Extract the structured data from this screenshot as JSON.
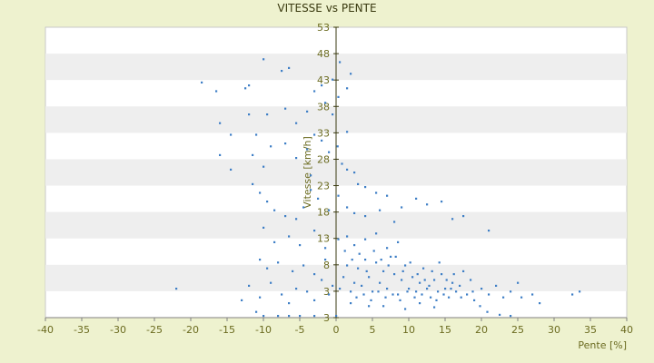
{
  "chart_data": {
    "type": "scatter",
    "title": "VITESSE vs PENTE",
    "xlabel": "Pente [%]",
    "ylabel": "Vitesse [km/h]",
    "xlim": [
      -40,
      40
    ],
    "ylim": [
      3,
      53
    ],
    "x_ticks": [
      "-40",
      "-35",
      "-30",
      "-25",
      "-20",
      "-15",
      "-10",
      "-5",
      "0",
      "5",
      "10",
      "15",
      "20",
      "25",
      "30",
      "35",
      "40"
    ],
    "y_ticks": [
      "3",
      "3",
      "8",
      "13",
      "18",
      "23",
      "28",
      "33",
      "38",
      "43",
      "48",
      "53"
    ],
    "alternating_bands": true,
    "marker_color": "#3f7fc6",
    "points": [
      [
        -18.5,
        43.5
      ],
      [
        -16.5,
        42.0
      ],
      [
        -12.5,
        42.5
      ],
      [
        -12.0,
        43.0
      ],
      [
        -10.0,
        47.5
      ],
      [
        -7.5,
        45.5
      ],
      [
        -6.5,
        46.0
      ],
      [
        -3.0,
        42.0
      ],
      [
        -2.0,
        43.0
      ],
      [
        -0.5,
        44.0
      ],
      [
        0.5,
        47.0
      ],
      [
        2.0,
        45.0
      ],
      [
        1.5,
        42.5
      ],
      [
        -16.0,
        36.5
      ],
      [
        -14.5,
        34.5
      ],
      [
        -12.0,
        38.0
      ],
      [
        -11.0,
        34.5
      ],
      [
        -9.5,
        38.0
      ],
      [
        -7.0,
        39.0
      ],
      [
        -5.5,
        36.5
      ],
      [
        -4.0,
        38.5
      ],
      [
        -3.0,
        34.5
      ],
      [
        -1.5,
        40.0
      ],
      [
        -0.5,
        38.0
      ],
      [
        0.3,
        41.0
      ],
      [
        1.5,
        35.0
      ],
      [
        -16.0,
        31.0
      ],
      [
        -14.5,
        28.5
      ],
      [
        -11.5,
        31.0
      ],
      [
        -10.0,
        29.0
      ],
      [
        -9.0,
        32.5
      ],
      [
        -7.0,
        33.0
      ],
      [
        -5.5,
        30.5
      ],
      [
        -4.0,
        32.0
      ],
      [
        -3.5,
        27.5
      ],
      [
        -2.0,
        33.5
      ],
      [
        -1.0,
        31.5
      ],
      [
        0.2,
        32.5
      ],
      [
        0.8,
        29.5
      ],
      [
        1.5,
        28.5
      ],
      [
        2.5,
        28.0
      ],
      [
        3.0,
        26.0
      ],
      [
        4.0,
        25.5
      ],
      [
        5.5,
        24.5
      ],
      [
        7.0,
        24.0
      ],
      [
        9.0,
        22.0
      ],
      [
        -11.5,
        26.0
      ],
      [
        -10.5,
        24.5
      ],
      [
        -9.5,
        23.0
      ],
      [
        -8.5,
        21.5
      ],
      [
        -7.0,
        20.5
      ],
      [
        -5.5,
        20.0
      ],
      [
        -4.5,
        22.0
      ],
      [
        -3.5,
        25.0
      ],
      [
        -2.5,
        23.5
      ],
      [
        -1.0,
        21.5
      ],
      [
        0.3,
        24.0
      ],
      [
        1.5,
        22.0
      ],
      [
        2.5,
        21.0
      ],
      [
        4.0,
        20.5
      ],
      [
        6.0,
        21.5
      ],
      [
        8.0,
        19.5
      ],
      [
        11.0,
        23.5
      ],
      [
        12.5,
        22.5
      ],
      [
        14.5,
        23.0
      ],
      [
        17.5,
        20.5
      ],
      [
        21.0,
        18.0
      ],
      [
        16.0,
        20.0
      ],
      [
        -10.0,
        18.5
      ],
      [
        -8.5,
        16.0
      ],
      [
        -6.5,
        17.0
      ],
      [
        -5.0,
        15.5
      ],
      [
        -3.0,
        18.0
      ],
      [
        -1.5,
        15.0
      ],
      [
        0.3,
        16.5
      ],
      [
        1.5,
        17.0
      ],
      [
        2.5,
        15.5
      ],
      [
        4.0,
        16.5
      ],
      [
        5.5,
        17.5
      ],
      [
        7.0,
        15.0
      ],
      [
        8.5,
        16.0
      ],
      [
        -10.5,
        13.0
      ],
      [
        -9.5,
        11.5
      ],
      [
        -8.0,
        12.5
      ],
      [
        -6.0,
        11.0
      ],
      [
        -4.5,
        12.0
      ],
      [
        -3.0,
        10.5
      ],
      [
        -1.5,
        13.0
      ],
      [
        -22.0,
        8.0
      ],
      [
        -13.0,
        6.0
      ],
      [
        -12.0,
        8.5
      ],
      [
        -11.0,
        4.0
      ],
      [
        -10.5,
        6.5
      ],
      [
        -9.0,
        9.0
      ],
      [
        -7.5,
        7.0
      ],
      [
        -6.5,
        5.5
      ],
      [
        -5.5,
        8.0
      ],
      [
        -4.0,
        7.5
      ],
      [
        -3.0,
        6.0
      ],
      [
        -2.0,
        9.5
      ],
      [
        -1.0,
        7.0
      ],
      [
        -0.5,
        8.5
      ],
      [
        -10.0,
        0.5
      ],
      [
        -8.0,
        0.5
      ],
      [
        -6.5,
        2.5
      ],
      [
        -5.0,
        3.0
      ],
      [
        -3.0,
        1.5
      ],
      [
        0.0,
        2.5
      ],
      [
        24.0,
        0.8
      ],
      [
        0.5,
        8.0
      ],
      [
        1.0,
        10.0
      ],
      [
        1.5,
        12.0
      ],
      [
        2.0,
        7.5
      ],
      [
        2.5,
        9.0
      ],
      [
        3.0,
        11.5
      ],
      [
        3.5,
        8.5
      ],
      [
        4.0,
        13.0
      ],
      [
        4.5,
        10.0
      ],
      [
        5.0,
        7.5
      ],
      [
        5.5,
        12.5
      ],
      [
        6.0,
        9.0
      ],
      [
        6.5,
        11.0
      ],
      [
        7.0,
        8.0
      ],
      [
        7.5,
        13.5
      ],
      [
        8.0,
        10.5
      ],
      [
        8.5,
        7.0
      ],
      [
        9.0,
        9.5
      ],
      [
        9.5,
        12.0
      ],
      [
        10.0,
        8.0
      ],
      [
        10.5,
        10.0
      ],
      [
        11.0,
        7.5
      ],
      [
        11.5,
        9.0
      ],
      [
        12.0,
        11.5
      ],
      [
        12.5,
        8.0
      ],
      [
        13.0,
        6.5
      ],
      [
        13.5,
        9.5
      ],
      [
        14.0,
        7.5
      ],
      [
        14.5,
        10.5
      ],
      [
        15.0,
        8.0
      ],
      [
        15.5,
        6.5
      ],
      [
        16.0,
        9.0
      ],
      [
        16.5,
        7.5
      ],
      [
        17.0,
        8.5
      ],
      [
        17.5,
        11.0
      ],
      [
        18.0,
        7.0
      ],
      [
        18.5,
        9.5
      ],
      [
        19.0,
        6.0
      ],
      [
        20.0,
        8.0
      ],
      [
        21.0,
        7.0
      ],
      [
        22.0,
        8.5
      ],
      [
        23.0,
        6.5
      ],
      [
        24.0,
        7.5
      ],
      [
        25.0,
        9.0
      ],
      [
        25.5,
        6.5
      ],
      [
        27.0,
        7.0
      ],
      [
        28.0,
        5.5
      ],
      [
        32.5,
        7.0
      ],
      [
        33.5,
        7.5
      ],
      [
        1.2,
        14.5
      ],
      [
        2.2,
        13.0
      ],
      [
        3.2,
        14.0
      ],
      [
        4.2,
        11.0
      ],
      [
        5.2,
        14.5
      ],
      [
        6.2,
        13.0
      ],
      [
        7.2,
        12.0
      ],
      [
        8.2,
        13.5
      ],
      [
        9.2,
        11.0
      ],
      [
        10.2,
        12.5
      ],
      [
        11.2,
        10.5
      ],
      [
        12.2,
        9.5
      ],
      [
        13.2,
        11.0
      ],
      [
        14.2,
        12.5
      ],
      [
        15.2,
        9.5
      ],
      [
        16.2,
        10.5
      ],
      [
        2.8,
        6.5
      ],
      [
        3.8,
        7.0
      ],
      [
        4.8,
        6.0
      ],
      [
        5.8,
        7.5
      ],
      [
        6.8,
        6.5
      ],
      [
        7.8,
        7.0
      ],
      [
        8.8,
        6.0
      ],
      [
        9.8,
        7.5
      ],
      [
        10.8,
        6.5
      ],
      [
        11.8,
        7.0
      ],
      [
        12.8,
        8.5
      ],
      [
        13.8,
        6.0
      ],
      [
        14.8,
        7.0
      ],
      [
        15.8,
        8.0
      ],
      [
        17.2,
        6.5
      ],
      [
        18.8,
        7.5
      ],
      [
        19.8,
        5.0
      ],
      [
        20.8,
        4.0
      ],
      [
        22.5,
        3.5
      ],
      [
        2.0,
        5.5
      ],
      [
        4.5,
        5.0
      ],
      [
        6.5,
        5.0
      ],
      [
        9.5,
        4.5
      ],
      [
        11.5,
        5.5
      ],
      [
        13.5,
        4.8
      ]
    ]
  }
}
